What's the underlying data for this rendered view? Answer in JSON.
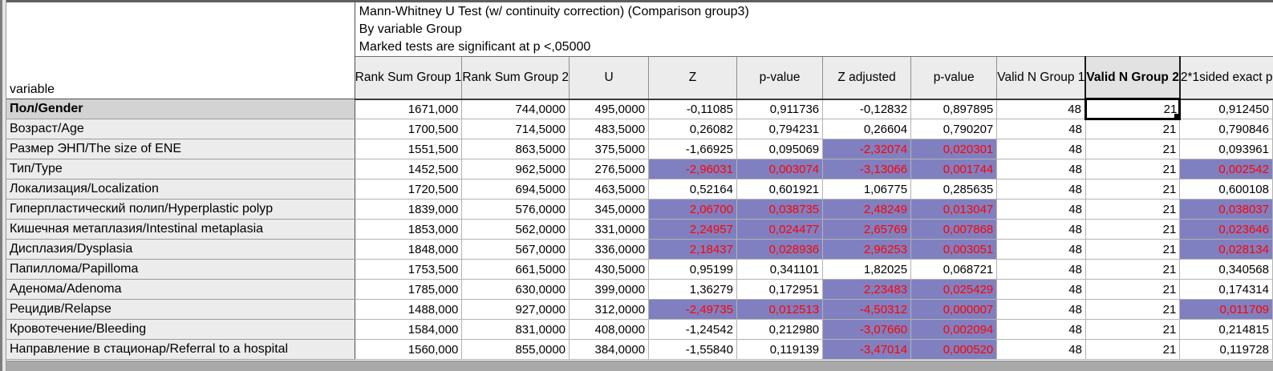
{
  "title_lines": [
    "Mann-Whitney U Test (w/ continuity correction) (Comparison group3)",
    "By variable Group",
    "Marked tests are significant at p <,05000"
  ],
  "corner_label": "variable",
  "colors": {
    "significant_bg": "#8080c0",
    "significant_text": "#ff0000",
    "header_bg": "#ececec",
    "selected_rowheader_bg": "#d3d3d3"
  },
  "selected_cell": {
    "row": 0,
    "col": 8
  },
  "selected_column": 8,
  "chart_data": {
    "type": "table",
    "title": "Mann-Whitney U Test (w/ continuity correction) (Comparison group3)",
    "columns": [
      {
        "line1": "Rank Sum",
        "line2": "Group 1"
      },
      {
        "line1": "Rank Sum",
        "line2": "Group 2"
      },
      {
        "line1": "U",
        "line2": ""
      },
      {
        "line1": "Z",
        "line2": ""
      },
      {
        "line1": "p-value",
        "line2": ""
      },
      {
        "line1": "Z",
        "line2": "adjusted"
      },
      {
        "line1": "p-value",
        "line2": ""
      },
      {
        "line1": "Valid N",
        "line2": "Group 1"
      },
      {
        "line1": "Valid N",
        "line2": "Group 2"
      },
      {
        "line1": "2*1sided",
        "line2": "exact p"
      }
    ],
    "rows": [
      {
        "variable": "Пол/Gender",
        "values": [
          "1671,000",
          "744,0000",
          "495,0000",
          "-0,11085",
          "0,911736",
          "-0,12832",
          "0,897895",
          "48",
          "21",
          "0,912450"
        ],
        "sig": []
      },
      {
        "variable": "Возраст/Age",
        "values": [
          "1700,500",
          "714,5000",
          "483,5000",
          "0,26082",
          "0,794231",
          "0,26604",
          "0,790207",
          "48",
          "21",
          "0,790846"
        ],
        "sig": []
      },
      {
        "variable": "Размер ЭНП/The size of ENE",
        "values": [
          "1551,500",
          "863,5000",
          "375,5000",
          "-1,66925",
          "0,095069",
          "-2,32074",
          "0,020301",
          "48",
          "21",
          "0,093961"
        ],
        "sig": [
          5,
          6
        ]
      },
      {
        "variable": "Тип/Type",
        "values": [
          "1452,500",
          "962,5000",
          "276,5000",
          "-2,96031",
          "0,003074",
          "-3,13066",
          "0,001744",
          "48",
          "21",
          "0,002542"
        ],
        "sig": [
          3,
          4,
          5,
          6,
          9
        ]
      },
      {
        "variable": "Локализация/Localization",
        "values": [
          "1720,500",
          "694,5000",
          "463,5000",
          "0,52164",
          "0,601921",
          "1,06775",
          "0,285635",
          "48",
          "21",
          "0,600108"
        ],
        "sig": []
      },
      {
        "variable": "Гиперпластический полип/Hyperplastic polyp",
        "values": [
          "1839,000",
          "576,0000",
          "345,0000",
          "2,06700",
          "0,038735",
          "2,48249",
          "0,013047",
          "48",
          "21",
          "0,038037"
        ],
        "sig": [
          3,
          4,
          5,
          6,
          9
        ]
      },
      {
        "variable": "Кишечная метаплазия/Intestinal metaplasia",
        "values": [
          "1853,000",
          "562,0000",
          "331,0000",
          "2,24957",
          "0,024477",
          "2,65769",
          "0,007868",
          "48",
          "21",
          "0,023646"
        ],
        "sig": [
          3,
          4,
          5,
          6,
          9
        ]
      },
      {
        "variable": "Дисплазия/Dysplasia",
        "values": [
          "1848,000",
          "567,0000",
          "336,0000",
          "2,18437",
          "0,028936",
          "2,96253",
          "0,003051",
          "48",
          "21",
          "0,028134"
        ],
        "sig": [
          3,
          4,
          5,
          6,
          9
        ]
      },
      {
        "variable": "Папиллома/Papilloma",
        "values": [
          "1753,500",
          "661,5000",
          "430,5000",
          "0,95199",
          "0,341101",
          "1,82025",
          "0,068721",
          "48",
          "21",
          "0,340568"
        ],
        "sig": []
      },
      {
        "variable": "Аденома/Adenoma",
        "values": [
          "1785,000",
          "630,0000",
          "399,0000",
          "1,36279",
          "0,172951",
          "2,23483",
          "0,025429",
          "48",
          "21",
          "0,174314"
        ],
        "sig": [
          5,
          6
        ]
      },
      {
        "variable": "Рецидив/Relapse",
        "values": [
          "1488,000",
          "927,0000",
          "312,0000",
          "-2,49735",
          "0,012513",
          "-4,50312",
          "0,000007",
          "48",
          "21",
          "0,011709"
        ],
        "sig": [
          3,
          4,
          5,
          6,
          9
        ]
      },
      {
        "variable": "Кровотечение/Bleeding",
        "values": [
          "1584,000",
          "831,0000",
          "408,0000",
          "-1,24542",
          "0,212980",
          "-3,07660",
          "0,002094",
          "48",
          "21",
          "0,214815"
        ],
        "sig": [
          5,
          6
        ]
      },
      {
        "variable": "Направление в стационар/Referral to a hospital",
        "values": [
          "1560,000",
          "855,0000",
          "384,0000",
          "-1,55840",
          "0,119139",
          "-3,47014",
          "0,000520",
          "48",
          "21",
          "0,119728"
        ],
        "sig": [
          5,
          6
        ]
      }
    ]
  }
}
